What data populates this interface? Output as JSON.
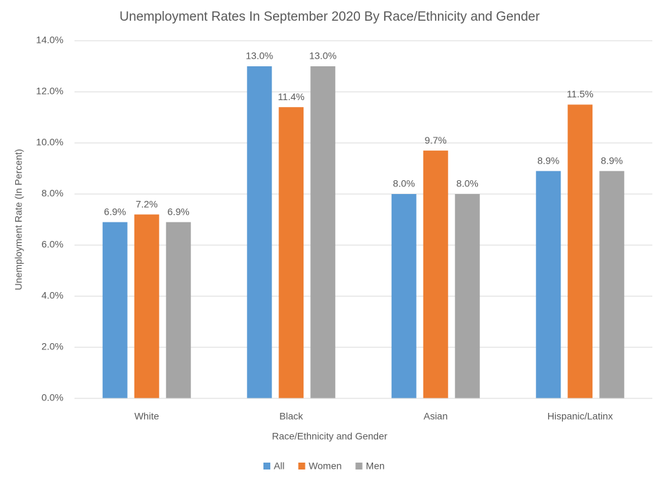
{
  "chart_data": {
    "type": "bar",
    "title": "Unemployment Rates In September 2020 By Race/Ethnicity and Gender",
    "x_label": "Race/Ethnicity and Gender",
    "y_label": "Unemployment Rate (In Percent)",
    "categories": [
      "White",
      "Black",
      "Asian",
      "Hispanic/Latinx"
    ],
    "series": [
      {
        "name": "All",
        "color": "#5b9bd5",
        "values": [
          6.9,
          13.0,
          8.0,
          8.9
        ],
        "value_labels": [
          "6.9%",
          "13.0%",
          "8.0%",
          "8.9%"
        ]
      },
      {
        "name": "Women",
        "color": "#ed7d31",
        "values": [
          7.2,
          11.4,
          9.7,
          11.5
        ],
        "value_labels": [
          "7.2%",
          "11.4%",
          "9.7%",
          "11.5%"
        ]
      },
      {
        "name": "Men",
        "color": "#a5a5a5",
        "values": [
          6.9,
          13.0,
          8.0,
          8.9
        ],
        "value_labels": [
          "6.9%",
          "13.0%",
          "8.0%",
          "8.9%"
        ]
      }
    ],
    "ylim": [
      0,
      14
    ],
    "yticks": [
      {
        "value": 0,
        "label": "0.0%"
      },
      {
        "value": 2,
        "label": "2.0%"
      },
      {
        "value": 4,
        "label": "4.0%"
      },
      {
        "value": 6,
        "label": "6.0%"
      },
      {
        "value": 8,
        "label": "8.0%"
      },
      {
        "value": 10,
        "label": "10.0%"
      },
      {
        "value": 12,
        "label": "12.0%"
      },
      {
        "value": 14,
        "label": "14.0%"
      }
    ],
    "grid": true,
    "legend": "bottom"
  }
}
